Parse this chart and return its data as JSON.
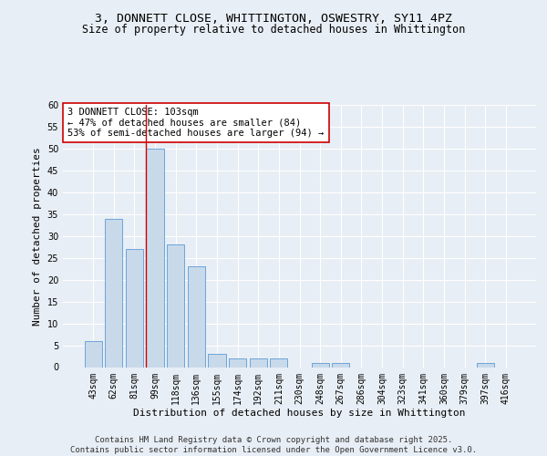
{
  "title_line1": "3, DONNETT CLOSE, WHITTINGTON, OSWESTRY, SY11 4PZ",
  "title_line2": "Size of property relative to detached houses in Whittington",
  "xlabel": "Distribution of detached houses by size in Whittington",
  "ylabel": "Number of detached properties",
  "bar_labels": [
    "43sqm",
    "62sqm",
    "81sqm",
    "99sqm",
    "118sqm",
    "136sqm",
    "155sqm",
    "174sqm",
    "192sqm",
    "211sqm",
    "230sqm",
    "248sqm",
    "267sqm",
    "286sqm",
    "304sqm",
    "323sqm",
    "341sqm",
    "360sqm",
    "379sqm",
    "397sqm",
    "416sqm"
  ],
  "bar_values": [
    6,
    34,
    27,
    50,
    28,
    23,
    3,
    2,
    2,
    2,
    0,
    1,
    1,
    0,
    0,
    0,
    0,
    0,
    0,
    1,
    0
  ],
  "bar_color": "#c8d9ea",
  "bar_edge_color": "#5b9bd5",
  "highlight_bar_index": 3,
  "property_size": 103,
  "annotation_text": "3 DONNETT CLOSE: 103sqm\n← 47% of detached houses are smaller (84)\n53% of semi-detached houses are larger (94) →",
  "annotation_box_color": "#ffffff",
  "annotation_box_edge": "#cc0000",
  "vline_color": "#cc0000",
  "ylim": [
    0,
    60
  ],
  "yticks": [
    0,
    5,
    10,
    15,
    20,
    25,
    30,
    35,
    40,
    45,
    50,
    55,
    60
  ],
  "footnote": "Contains HM Land Registry data © Crown copyright and database right 2025.\nContains public sector information licensed under the Open Government Licence v3.0.",
  "bg_color": "#e8eef5",
  "plot_bg_color": "#e8eef5",
  "grid_color": "#ffffff",
  "title_fontsize": 9.5,
  "subtitle_fontsize": 8.5,
  "axis_label_fontsize": 8,
  "tick_fontsize": 7,
  "annotation_fontsize": 7.5,
  "footnote_fontsize": 6.5
}
